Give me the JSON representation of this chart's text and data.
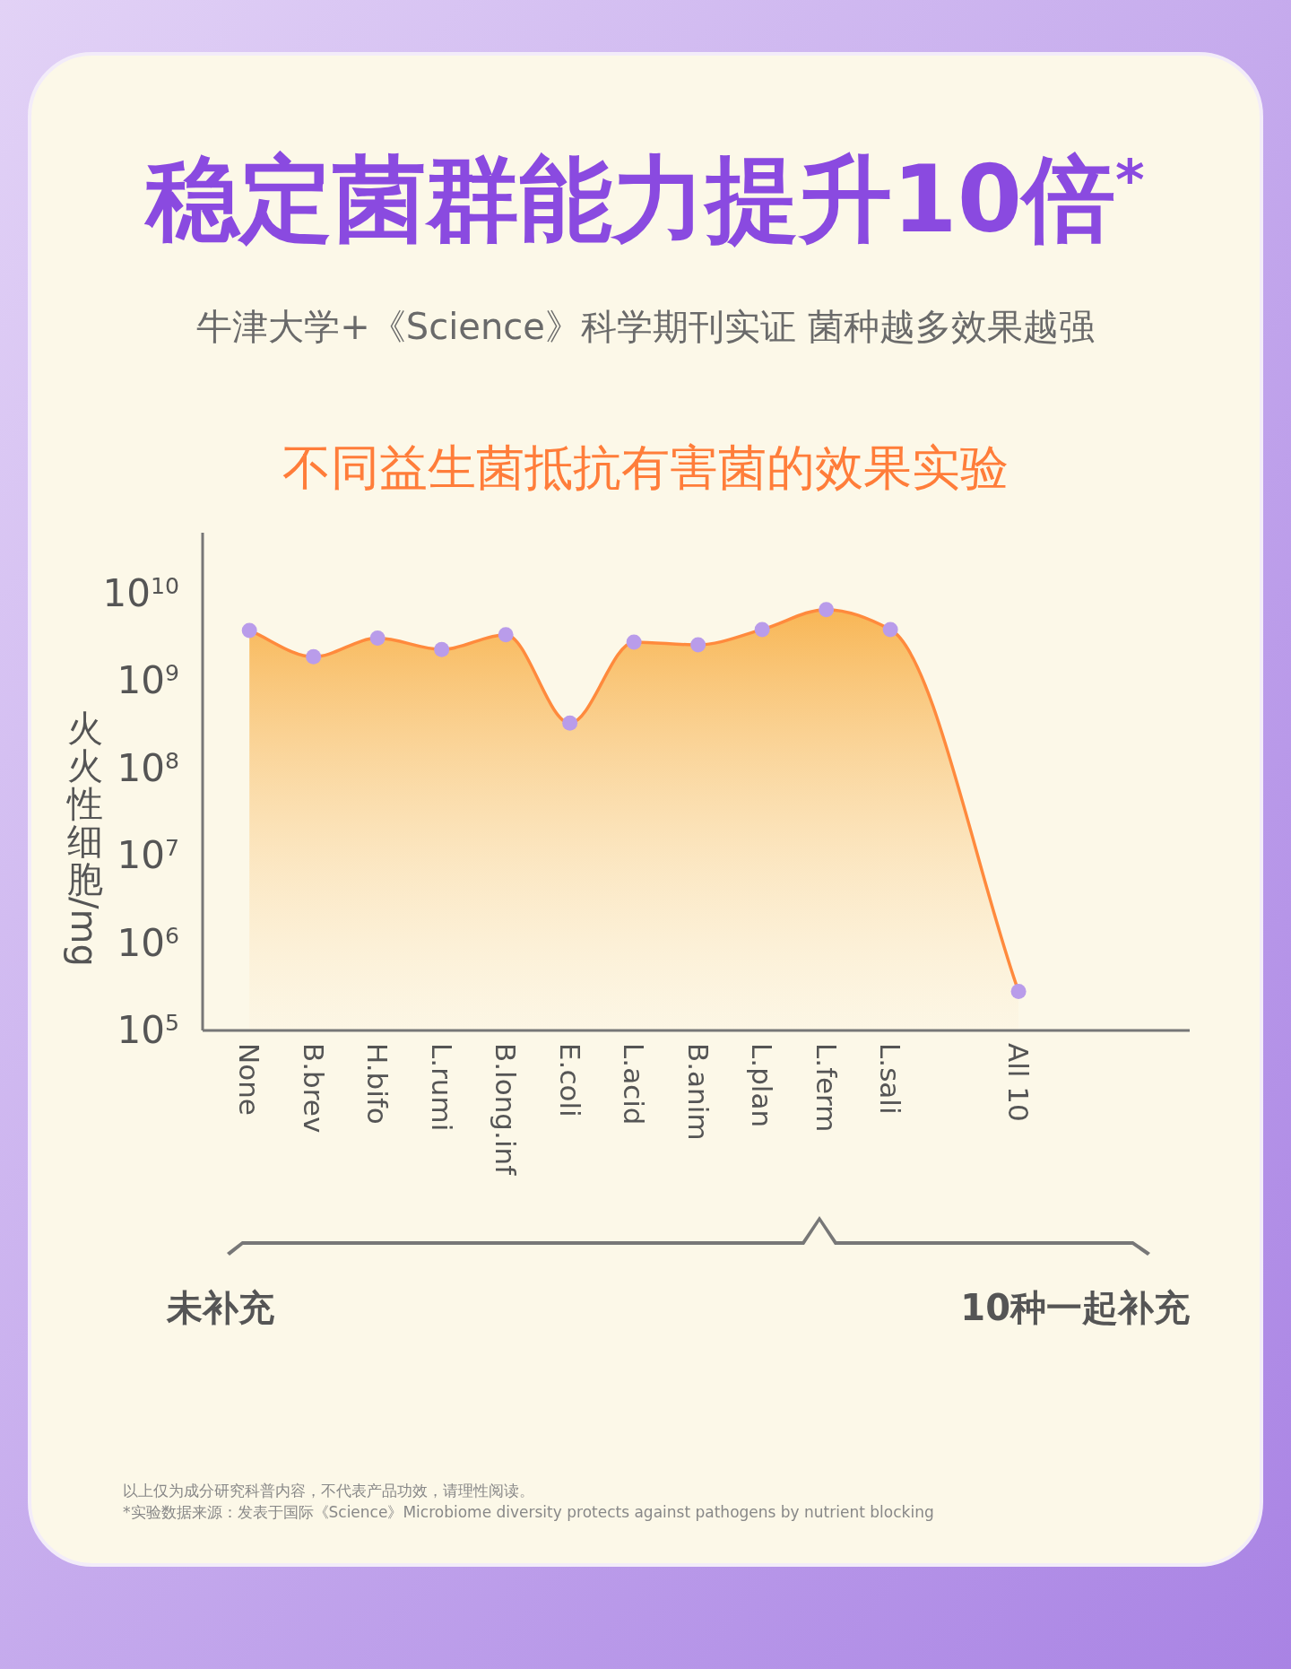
{
  "chart_data": {
    "type": "area",
    "title": "稳定菌群能力提升10倍$^{*}$",
    "subtitle": "牛津大学+《Science》科学期刊实证 菌种越多效果越强",
    "annotations": [
      "不同益生菌抵抗有害菌的效果实验",
      "未补充",
      "10种一起补充",
      "以上仅为成分研究科普内容，不代表产品功效，请理性阅读。",
      "*实验数据来源：发表于国际《Science》Microbiome diversity protects against pathogens by nutrient blocking"
    ],
    "ylabel": "火火性细胞/mg",
    "categories": [
      "None",
      "B.brev",
      "H.bifo",
      "L.rumi",
      "B.long.inf",
      "E.coli",
      "L.acid",
      "B.anim",
      "L.plan",
      "L.ferm",
      "L.sali",
      null,
      "All 10"
    ],
    "series": [
      {
        "color": "#ff8a3d",
        "values": [
          3800000000.0,
          1900000000.0,
          3100000000.0,
          2300000000.0,
          3400000000.0,
          330000000.0,
          2800000000.0,
          2600000000.0,
          3900000000.0,
          6600000000.0,
          3900000000.0,
          null,
          280000.0
        ]
      }
    ],
    "colors": [
      "#b99cea",
      "#b99cea",
      "#b99cea",
      "#b99cea",
      "#b99cea",
      "#b99cea",
      "#b99cea",
      "#b99cea",
      "#b99cea",
      "#b99cea",
      "#b99cea",
      null,
      "#b99cea"
    ],
    "marker": "circle",
    "log": true,
    "grid": false,
    "ylim": [
      100000.0,
      50000000000.0
    ],
    "yticks": [
      {
        "value": 100000.0,
        "label": "10$^{5}$"
      },
      {
        "value": 1000000.0,
        "label": "10$^{6}$"
      },
      {
        "value": 10000000.0,
        "label": "10$^{7}$"
      },
      {
        "value": 100000000.0,
        "label": "10$^{8}$"
      },
      {
        "value": 1000000000.0,
        "label": "10$^{9}$"
      },
      {
        "value": 10000000000.0,
        "label": "10$^{10}$"
      }
    ]
  }
}
